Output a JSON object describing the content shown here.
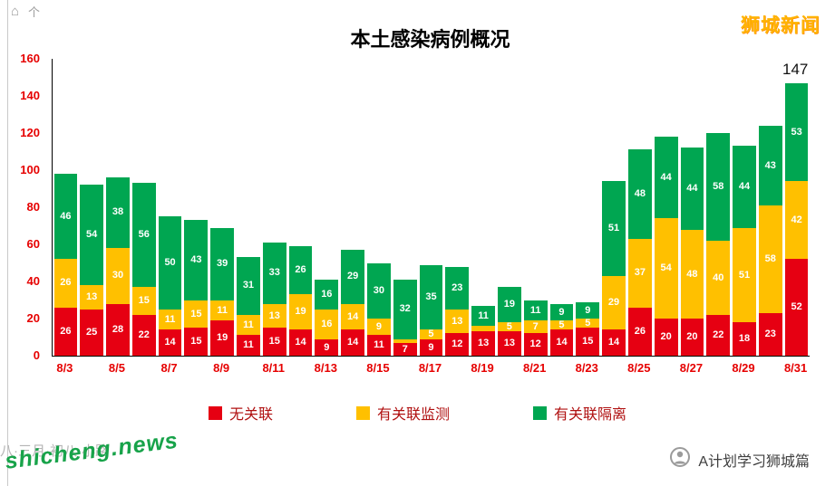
{
  "page": {
    "corner_glyphs": [
      "⌂",
      "个"
    ],
    "brand": "狮城新闻",
    "watermark_bg_text": "八·三月·初八·小路",
    "watermark_site": "shicheng.news",
    "footer_account": "A计划学习狮城篇"
  },
  "chart_data": {
    "type": "bar",
    "stacked": true,
    "title": "本土感染病例概况",
    "categories": [
      "8/3",
      "8/4",
      "8/5",
      "8/6",
      "8/7",
      "8/8",
      "8/9",
      "8/10",
      "8/11",
      "8/12",
      "8/13",
      "8/14",
      "8/15",
      "8/16",
      "8/17",
      "8/18",
      "8/19",
      "8/20",
      "8/21",
      "8/22",
      "8/23",
      "8/24",
      "8/25",
      "8/26",
      "8/27",
      "8/28",
      "8/29",
      "8/30",
      "8/31"
    ],
    "x_tick_labels": [
      "8/3",
      "8/5",
      "8/7",
      "8/9",
      "8/11",
      "8/13",
      "8/15",
      "8/17",
      "8/19",
      "8/21",
      "8/23",
      "8/25",
      "8/27",
      "8/29",
      "8/31"
    ],
    "series": [
      {
        "name": "无关联",
        "color": "#e60012",
        "values": [
          26,
          25,
          28,
          22,
          14,
          15,
          19,
          11,
          15,
          14,
          9,
          14,
          11,
          7,
          9,
          12,
          13,
          13,
          12,
          14,
          15,
          14,
          26,
          20,
          20,
          22,
          18,
          23,
          52
        ]
      },
      {
        "name": "有关联监测",
        "color": "#ffc000",
        "values": [
          26,
          13,
          30,
          15,
          11,
          15,
          11,
          11,
          13,
          19,
          16,
          14,
          9,
          2,
          5,
          13,
          3,
          5,
          7,
          5,
          5,
          29,
          37,
          54,
          48,
          40,
          51,
          58,
          42
        ]
      },
      {
        "name": "有关联隔离",
        "color": "#00a651",
        "values": [
          46,
          54,
          38,
          56,
          50,
          43,
          39,
          31,
          33,
          26,
          16,
          29,
          30,
          32,
          35,
          23,
          11,
          19,
          11,
          9,
          9,
          51,
          48,
          44,
          44,
          58,
          44,
          43,
          53
        ]
      }
    ],
    "xlabel": "",
    "ylabel": "",
    "ylim": [
      0,
      160
    ],
    "y_ticks": [
      0,
      20,
      40,
      60,
      80,
      100,
      120,
      140,
      160
    ],
    "grid": false,
    "legend_position": "bottom",
    "bar_label_color": "#ffffff",
    "axis_text_color": "#e60000",
    "legend_text_color": "#b01111",
    "annotation": {
      "text": "147",
      "category": "8/31"
    }
  }
}
